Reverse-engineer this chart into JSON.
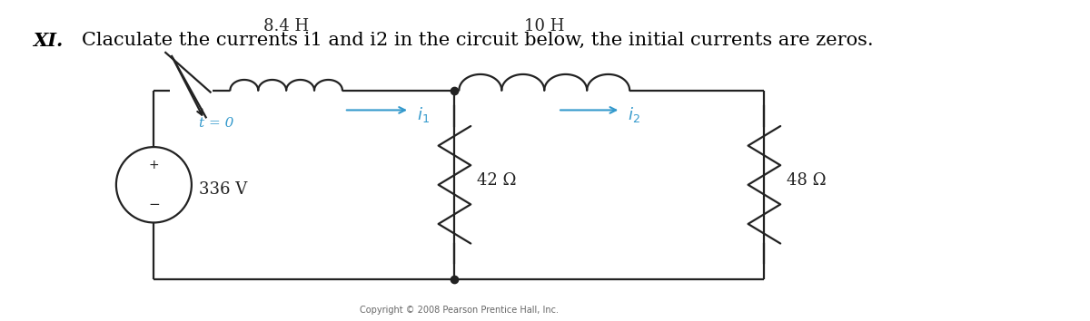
{
  "title_roman": "XI.",
  "title_text": "Claculate the currents i1 and i2 in the circuit below, the initial currents are zeros.",
  "title_fontsize": 15,
  "copyright_text": "Copyright © 2008 Pearson Prentice Hall, Inc.",
  "copyright_fontsize": 7,
  "bg_color": "#ffffff",
  "circuit": {
    "inductor1_label": "8.4 H",
    "inductor2_label": "10 H",
    "R1_label": "42 Ω",
    "R2_label": "48 Ω",
    "voltage_label": "336 V",
    "t0_label": "t = 0",
    "i1_label": "i",
    "i1_sub": "1",
    "i2_label": "i",
    "i2_sub": "2",
    "blue_color": "#3399cc",
    "black_color": "#222222"
  }
}
